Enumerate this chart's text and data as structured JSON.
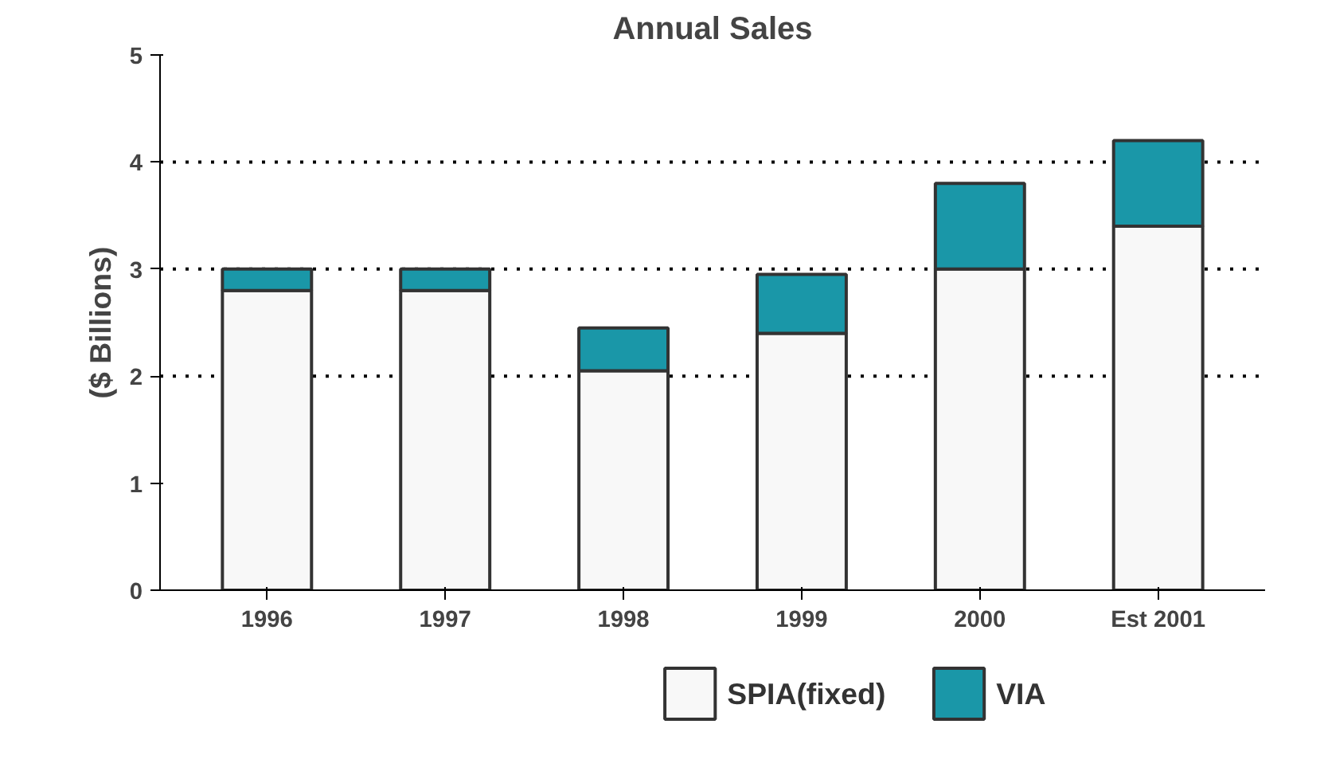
{
  "chart_data": {
    "type": "bar",
    "title": "Annual Sales",
    "ylabel": "($ Billions)",
    "categories": [
      "1996",
      "1997",
      "1998",
      "1999",
      "2000",
      "Est 2001"
    ],
    "stacked": true,
    "series": [
      {
        "name": "SPIA(fixed)",
        "color": "#f8f8f8",
        "values": [
          2.8,
          2.8,
          2.05,
          2.4,
          3.0,
          3.4
        ]
      },
      {
        "name": "VIA",
        "color": "#1a97a8",
        "values": [
          0.2,
          0.2,
          0.4,
          0.55,
          0.8,
          0.8
        ]
      }
    ],
    "ylim": [
      0,
      5
    ],
    "yticks": [
      0,
      1,
      2,
      3,
      4,
      5
    ],
    "grid": false,
    "legend": "bottom",
    "ref_lines": [
      {
        "axis": "y",
        "value": 2,
        "line_style": "dotted"
      },
      {
        "axis": "y",
        "value": 3,
        "line_style": "dotted"
      },
      {
        "axis": "y",
        "value": 4,
        "line_style": "dotted"
      }
    ]
  }
}
